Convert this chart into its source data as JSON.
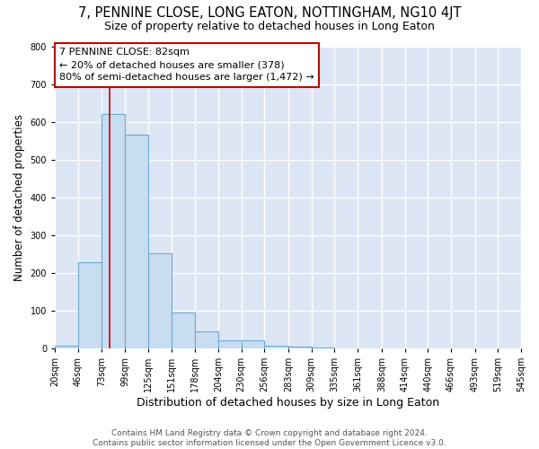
{
  "title": "7, PENNINE CLOSE, LONG EATON, NOTTINGHAM, NG10 4JT",
  "subtitle": "Size of property relative to detached houses in Long Eaton",
  "xlabel": "Distribution of detached houses by size in Long Eaton",
  "ylabel": "Number of detached properties",
  "bin_edges": [
    20,
    46,
    73,
    99,
    125,
    151,
    178,
    204,
    230,
    256,
    283,
    309,
    335,
    361,
    388,
    414,
    440,
    466,
    493,
    519,
    545
  ],
  "bar_heights": [
    8,
    228,
    620,
    565,
    252,
    95,
    46,
    22,
    22,
    8,
    5,
    2,
    0,
    0,
    0,
    0,
    0,
    0,
    0,
    0
  ],
  "bar_facecolor": "#c9ddf0",
  "bar_edgecolor": "#6aaad4",
  "bar_linewidth": 0.8,
  "property_size": 82,
  "vline_color": "#cc0000",
  "vline_linewidth": 1.2,
  "annotation_text": "7 PENNINE CLOSE: 82sqm\n← 20% of detached houses are smaller (378)\n80% of semi-detached houses are larger (1,472) →",
  "annotation_fontsize": 8.0,
  "annotation_box_color": "#ffffff",
  "annotation_box_edgecolor": "#cc0000",
  "figure_background_color": "#ffffff",
  "plot_background_color": "#dce6f5",
  "ylim": [
    0,
    800
  ],
  "yticks": [
    0,
    100,
    200,
    300,
    400,
    500,
    600,
    700,
    800
  ],
  "grid_color": "#ffffff",
  "grid_linewidth": 1.0,
  "title_fontsize": 10.5,
  "subtitle_fontsize": 9.0,
  "xlabel_fontsize": 9.0,
  "ylabel_fontsize": 8.5,
  "tick_fontsize": 7.0,
  "footer_text": "Contains HM Land Registry data © Crown copyright and database right 2024.\nContains public sector information licensed under the Open Government Licence v3.0.",
  "footer_fontsize": 6.5
}
